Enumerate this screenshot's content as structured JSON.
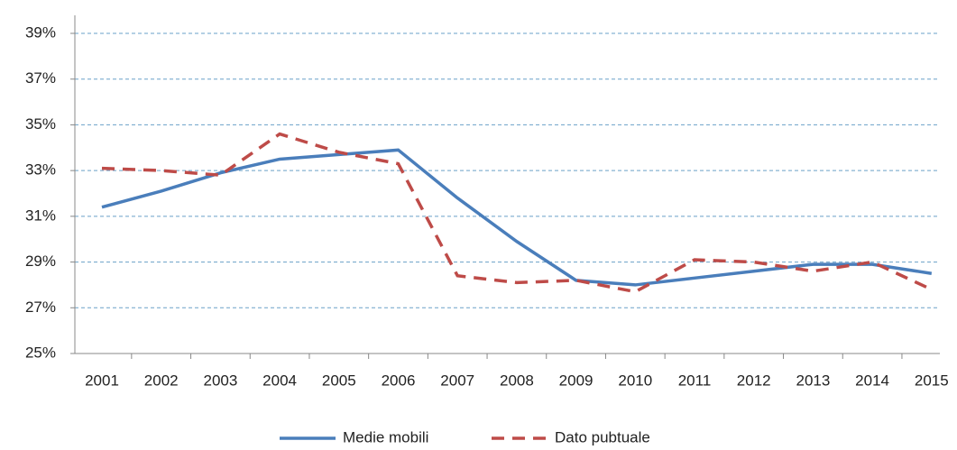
{
  "chart_data": {
    "type": "line",
    "categories": [
      "2001",
      "2002",
      "2003",
      "2004",
      "2005",
      "2006",
      "2007",
      "2008",
      "2009",
      "2010",
      "2011",
      "2012",
      "2013",
      "2014",
      "2015"
    ],
    "series": [
      {
        "name": "Medie mobili",
        "color": "#4a7ebb",
        "dash": false,
        "values": [
          31.4,
          32.1,
          32.9,
          33.5,
          33.7,
          33.9,
          31.8,
          29.9,
          28.2,
          28.0,
          28.3,
          28.6,
          28.9,
          28.9,
          28.5
        ]
      },
      {
        "name": "Dato pubtuale",
        "color": "#be4b48",
        "dash": true,
        "values": [
          33.1,
          33.0,
          32.8,
          34.6,
          33.8,
          33.3,
          28.4,
          28.1,
          28.2,
          27.7,
          29.1,
          29.0,
          28.6,
          29.0,
          27.8
        ]
      }
    ],
    "ylim": [
      25,
      39
    ],
    "yticks": [
      {
        "value": 25,
        "label": "25%"
      },
      {
        "value": 27,
        "label": "27%"
      },
      {
        "value": 29,
        "label": "29%"
      },
      {
        "value": 31,
        "label": "31%"
      },
      {
        "value": 33,
        "label": "33%"
      },
      {
        "value": 35,
        "label": "35%"
      },
      {
        "value": 37,
        "label": "37%"
      },
      {
        "value": 39,
        "label": "39%"
      }
    ],
    "grid": true
  }
}
